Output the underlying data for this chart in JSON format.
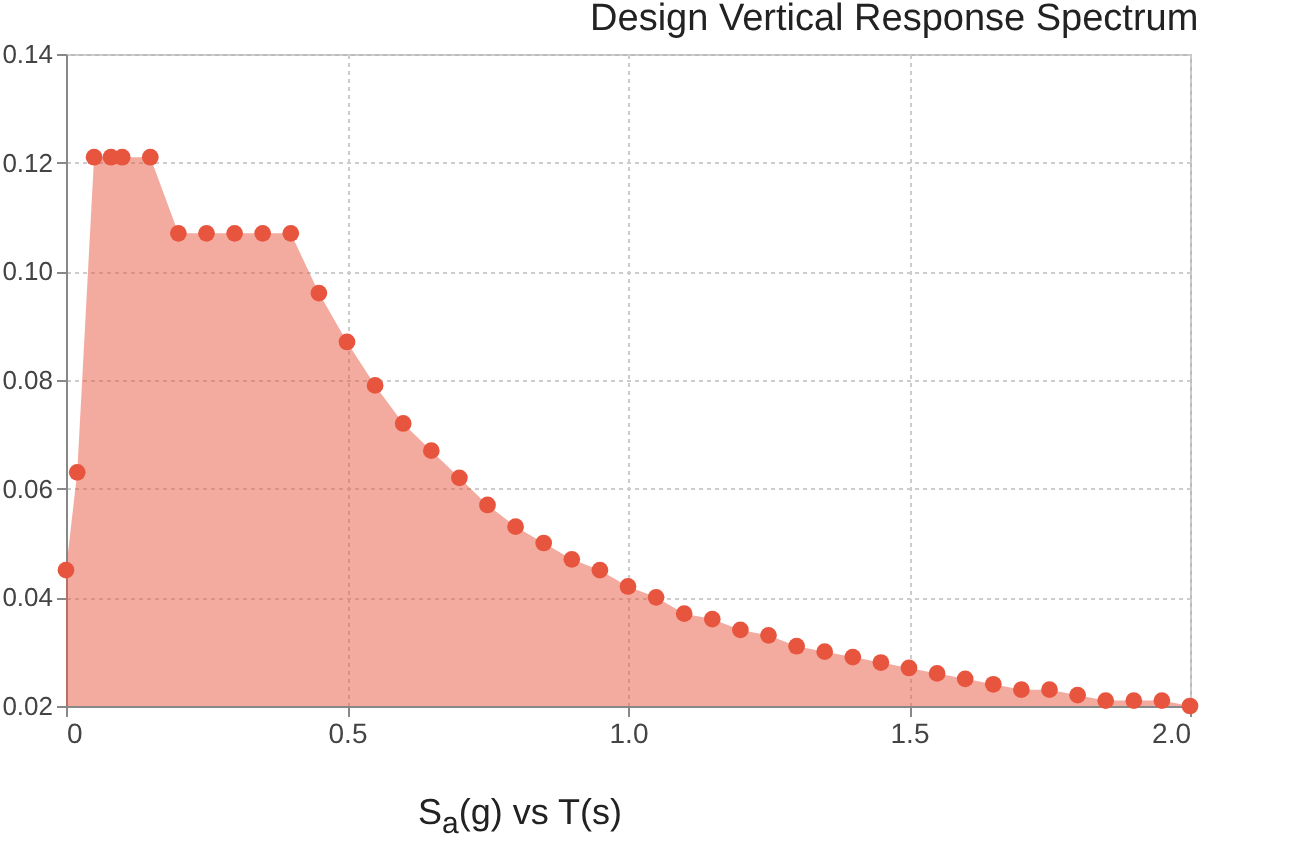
{
  "chart_data": {
    "type": "area",
    "title": "Design Vertical Response Spectrum",
    "xlabel": "S$_{a}$(g) vs T(s)",
    "x": [
      0,
      0.02,
      0.05,
      0.08,
      0.1,
      0.15,
      0.2,
      0.25,
      0.3,
      0.35,
      0.4,
      0.45,
      0.5,
      0.55,
      0.6,
      0.65,
      0.7,
      0.75,
      0.8,
      0.85,
      0.9,
      0.95,
      1.0,
      1.05,
      1.1,
      1.15,
      1.2,
      1.25,
      1.3,
      1.35,
      1.4,
      1.45,
      1.5,
      1.55,
      1.6,
      1.65,
      1.7,
      1.75,
      1.8,
      1.85,
      1.9,
      1.95,
      2.0
    ],
    "series": [
      {
        "color": "#e8553f",
        "values": [
          0.045,
          0.063,
          0.121,
          0.121,
          0.121,
          0.121,
          0.107,
          0.107,
          0.107,
          0.107,
          0.107,
          0.096,
          0.087,
          0.079,
          0.072,
          0.067,
          0.062,
          0.057,
          0.053,
          0.05,
          0.047,
          0.045,
          0.042,
          0.04,
          0.037,
          0.036,
          0.034,
          0.033,
          0.031,
          0.03,
          0.029,
          0.028,
          0.027,
          0.026,
          0.025,
          0.024,
          0.023,
          0.023,
          0.022,
          0.021,
          0.021,
          0.021,
          0.02
        ]
      }
    ],
    "xlim": [
      0,
      2
    ],
    "xticks": [
      0,
      0.5,
      {
        "value": 1,
        "label": "1.0"
      },
      1.5,
      {
        "value": 2,
        "label": "2.0"
      }
    ],
    "ylim": [
      0.02,
      0.14
    ],
    "yticks": [
      0.02,
      0.04,
      0.06,
      0.08,
      {
        "value": 0.1,
        "label": "0.10"
      },
      0.12,
      0.14
    ],
    "grid": true,
    "marker": "circle"
  }
}
